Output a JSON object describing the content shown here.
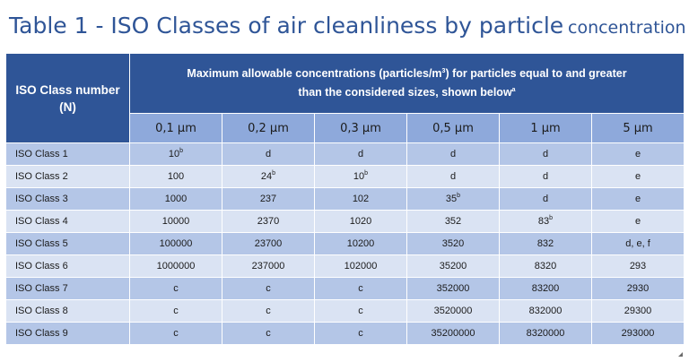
{
  "title": {
    "main": "Table 1 - ISO Classes of air cleanliness by particle",
    "small": "concentration"
  },
  "header": {
    "class_col": {
      "line1": "ISO Class number",
      "line2": "(N)"
    },
    "span": {
      "line1_prefix": "Maximum allowable concentrations (particles/m",
      "line1_sup": "3",
      "line1_suffix": ") for particles equal to and greater",
      "line2": "than the considered sizes, shown below",
      "line2_sup": "a"
    },
    "sizes": [
      "0,1 µm",
      "0,2 µm",
      "0,3 µm",
      "0,5 µm",
      "1 µm",
      "5 µm"
    ]
  },
  "rows": [
    {
      "label": "ISO Class 1",
      "cells": [
        {
          "v": "10",
          "s": "b"
        },
        {
          "v": "d"
        },
        {
          "v": "d"
        },
        {
          "v": "d"
        },
        {
          "v": "d"
        },
        {
          "v": "e"
        }
      ]
    },
    {
      "label": "ISO Class 2",
      "cells": [
        {
          "v": "100"
        },
        {
          "v": "24",
          "s": "b"
        },
        {
          "v": "10",
          "s": "b"
        },
        {
          "v": "d"
        },
        {
          "v": "d"
        },
        {
          "v": "e"
        }
      ]
    },
    {
      "label": "ISO Class 3",
      "cells": [
        {
          "v": "1000"
        },
        {
          "v": "237"
        },
        {
          "v": "102"
        },
        {
          "v": "35",
          "s": "b"
        },
        {
          "v": "d"
        },
        {
          "v": "e"
        }
      ]
    },
    {
      "label": "ISO Class 4",
      "cells": [
        {
          "v": "10000"
        },
        {
          "v": "2370"
        },
        {
          "v": "1020"
        },
        {
          "v": "352"
        },
        {
          "v": "83",
          "s": "b"
        },
        {
          "v": "e"
        }
      ]
    },
    {
      "label": "ISO Class 5",
      "cells": [
        {
          "v": "100000"
        },
        {
          "v": "23700"
        },
        {
          "v": "10200"
        },
        {
          "v": "3520"
        },
        {
          "v": "832"
        },
        {
          "v": "d, e, f"
        }
      ]
    },
    {
      "label": "ISO Class 6",
      "cells": [
        {
          "v": "1000000"
        },
        {
          "v": "237000"
        },
        {
          "v": "102000"
        },
        {
          "v": "35200"
        },
        {
          "v": "8320"
        },
        {
          "v": "293"
        }
      ]
    },
    {
      "label": "ISO Class 7",
      "cells": [
        {
          "v": "c"
        },
        {
          "v": "c"
        },
        {
          "v": "c"
        },
        {
          "v": "352000"
        },
        {
          "v": "83200"
        },
        {
          "v": "2930"
        }
      ]
    },
    {
      "label": "ISO Class 8",
      "cells": [
        {
          "v": "c"
        },
        {
          "v": "c"
        },
        {
          "v": "c"
        },
        {
          "v": "3520000"
        },
        {
          "v": "832000"
        },
        {
          "v": "29300"
        }
      ]
    },
    {
      "label": "ISO Class 9",
      "cells": [
        {
          "v": "c"
        },
        {
          "v": "c"
        },
        {
          "v": "c"
        },
        {
          "v": "35200000"
        },
        {
          "v": "8320000"
        },
        {
          "v": "293000"
        }
      ]
    }
  ]
}
